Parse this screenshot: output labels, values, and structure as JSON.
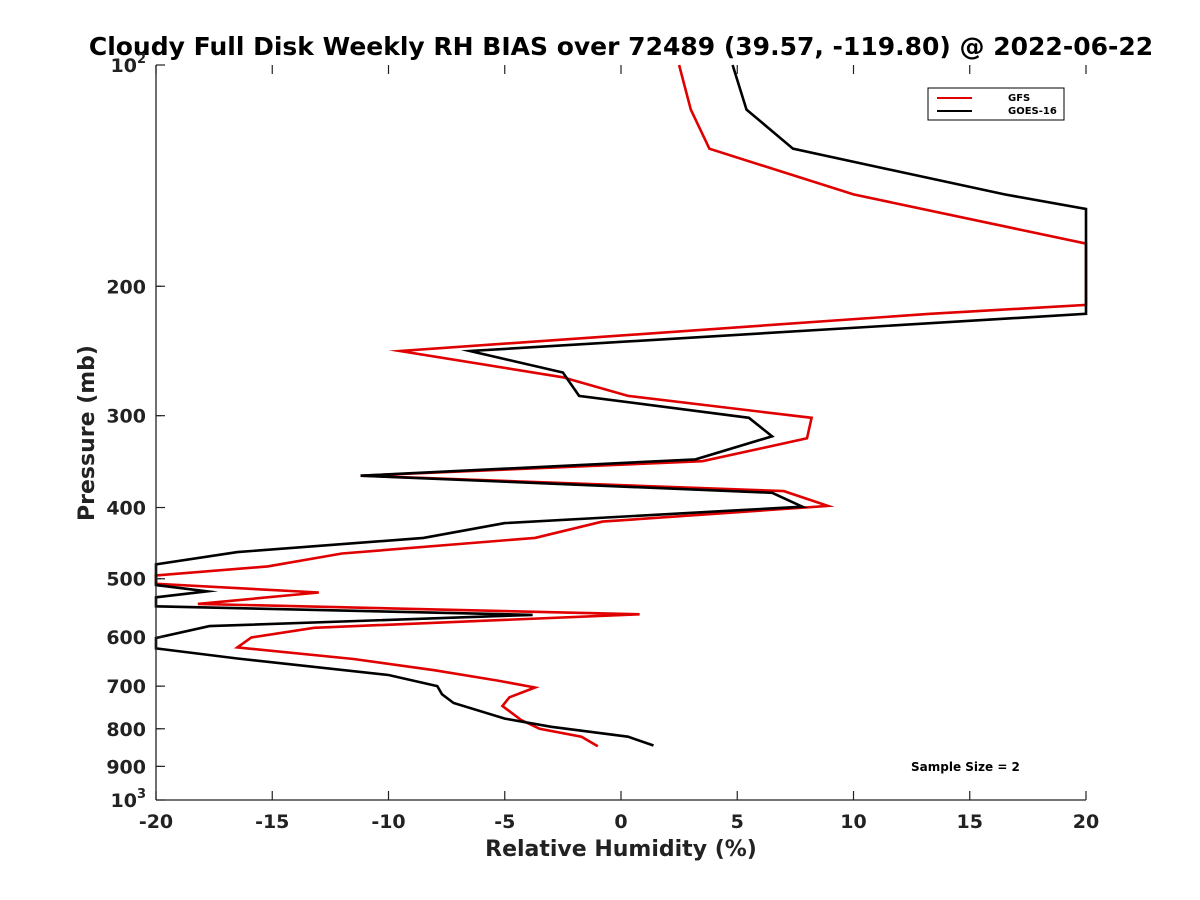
{
  "chart_data": {
    "type": "line",
    "title": "Cloudy Full Disk Weekly RH BIAS over 72489 (39.57, -119.80) @ 2022-06-22",
    "xlabel": "Relative Humidity (%)",
    "ylabel": "Pressure (mb)",
    "xlim": [
      -20,
      20
    ],
    "ylim": [
      100,
      1000
    ],
    "yscale": "log",
    "y_reversed": true,
    "x_ticks": [
      "-20",
      "-15",
      "-10",
      "-5",
      "0",
      "5",
      "10",
      "15",
      "20"
    ],
    "y_ticks": [
      {
        "value": 100,
        "label": "10",
        "sup": "2"
      },
      {
        "value": 200,
        "label": "200",
        "sup": ""
      },
      {
        "value": 300,
        "label": "300",
        "sup": ""
      },
      {
        "value": 400,
        "label": "400",
        "sup": ""
      },
      {
        "value": 500,
        "label": "500",
        "sup": ""
      },
      {
        "value": 600,
        "label": "600",
        "sup": ""
      },
      {
        "value": 700,
        "label": "700",
        "sup": ""
      },
      {
        "value": 800,
        "label": "800",
        "sup": ""
      },
      {
        "value": 900,
        "label": "900",
        "sup": ""
      },
      {
        "value": 1000,
        "label": "10",
        "sup": "3"
      }
    ],
    "legend_position": "top-right",
    "grid": false,
    "annotation": "Sample Size = 2",
    "series": [
      {
        "name": "GFS",
        "color": "#e00000",
        "points": [
          {
            "x": 2.5,
            "y": 100
          },
          {
            "x": 3.0,
            "y": 115
          },
          {
            "x": 3.8,
            "y": 130
          },
          {
            "x": 10.0,
            "y": 150
          },
          {
            "x": 20.0,
            "y": 175
          },
          {
            "x": 20.0,
            "y": 212
          },
          {
            "x": 13.3,
            "y": 218
          },
          {
            "x": -9.5,
            "y": 245
          },
          {
            "x": -2.5,
            "y": 266
          },
          {
            "x": 0.3,
            "y": 282
          },
          {
            "x": 8.2,
            "y": 302
          },
          {
            "x": 8.0,
            "y": 322
          },
          {
            "x": 3.5,
            "y": 346
          },
          {
            "x": -11.2,
            "y": 362
          },
          {
            "x": 7.0,
            "y": 380
          },
          {
            "x": 8.9,
            "y": 398
          },
          {
            "x": -0.8,
            "y": 418
          },
          {
            "x": -3.7,
            "y": 440
          },
          {
            "x": -12.0,
            "y": 462
          },
          {
            "x": -15.2,
            "y": 481
          },
          {
            "x": -20.0,
            "y": 495
          },
          {
            "x": -20.0,
            "y": 508
          },
          {
            "x": -13.0,
            "y": 522
          },
          {
            "x": -18.2,
            "y": 541
          },
          {
            "x": 0.8,
            "y": 559
          },
          {
            "x": -13.2,
            "y": 583
          },
          {
            "x": -15.9,
            "y": 601
          },
          {
            "x": -16.5,
            "y": 620
          },
          {
            "x": -11.5,
            "y": 643
          },
          {
            "x": -8.0,
            "y": 666
          },
          {
            "x": -5.3,
            "y": 688
          },
          {
            "x": -3.7,
            "y": 703
          },
          {
            "x": -4.8,
            "y": 725
          },
          {
            "x": -5.1,
            "y": 745
          },
          {
            "x": -4.3,
            "y": 778
          },
          {
            "x": -3.5,
            "y": 800
          },
          {
            "x": -1.7,
            "y": 820
          },
          {
            "x": -1.0,
            "y": 845
          }
        ]
      },
      {
        "name": "GOES-16",
        "color": "#000000",
        "points": [
          {
            "x": 4.8,
            "y": 100
          },
          {
            "x": 5.4,
            "y": 115
          },
          {
            "x": 7.4,
            "y": 130
          },
          {
            "x": 16.5,
            "y": 150
          },
          {
            "x": 20.0,
            "y": 157
          },
          {
            "x": 20.0,
            "y": 218
          },
          {
            "x": -6.5,
            "y": 245
          },
          {
            "x": -2.5,
            "y": 262
          },
          {
            "x": -1.8,
            "y": 282
          },
          {
            "x": 5.5,
            "y": 302
          },
          {
            "x": 6.5,
            "y": 320
          },
          {
            "x": 3.2,
            "y": 344
          },
          {
            "x": -11.2,
            "y": 362
          },
          {
            "x": 6.5,
            "y": 382
          },
          {
            "x": 7.8,
            "y": 399
          },
          {
            "x": -5.0,
            "y": 420
          },
          {
            "x": -8.5,
            "y": 440
          },
          {
            "x": -16.5,
            "y": 460
          },
          {
            "x": -20.0,
            "y": 478
          },
          {
            "x": -20.0,
            "y": 510
          },
          {
            "x": -17.8,
            "y": 520
          },
          {
            "x": -20.0,
            "y": 530
          },
          {
            "x": -20.0,
            "y": 545
          },
          {
            "x": -3.8,
            "y": 560
          },
          {
            "x": -17.7,
            "y": 580
          },
          {
            "x": -20.0,
            "y": 602
          },
          {
            "x": -20.0,
            "y": 622
          },
          {
            "x": -16.5,
            "y": 642
          },
          {
            "x": -10.0,
            "y": 676
          },
          {
            "x": -7.9,
            "y": 700
          },
          {
            "x": -7.7,
            "y": 718
          },
          {
            "x": -7.2,
            "y": 738
          },
          {
            "x": -5.0,
            "y": 775
          },
          {
            "x": -3.0,
            "y": 795
          },
          {
            "x": 0.3,
            "y": 820
          },
          {
            "x": 1.4,
            "y": 843
          }
        ]
      }
    ]
  }
}
